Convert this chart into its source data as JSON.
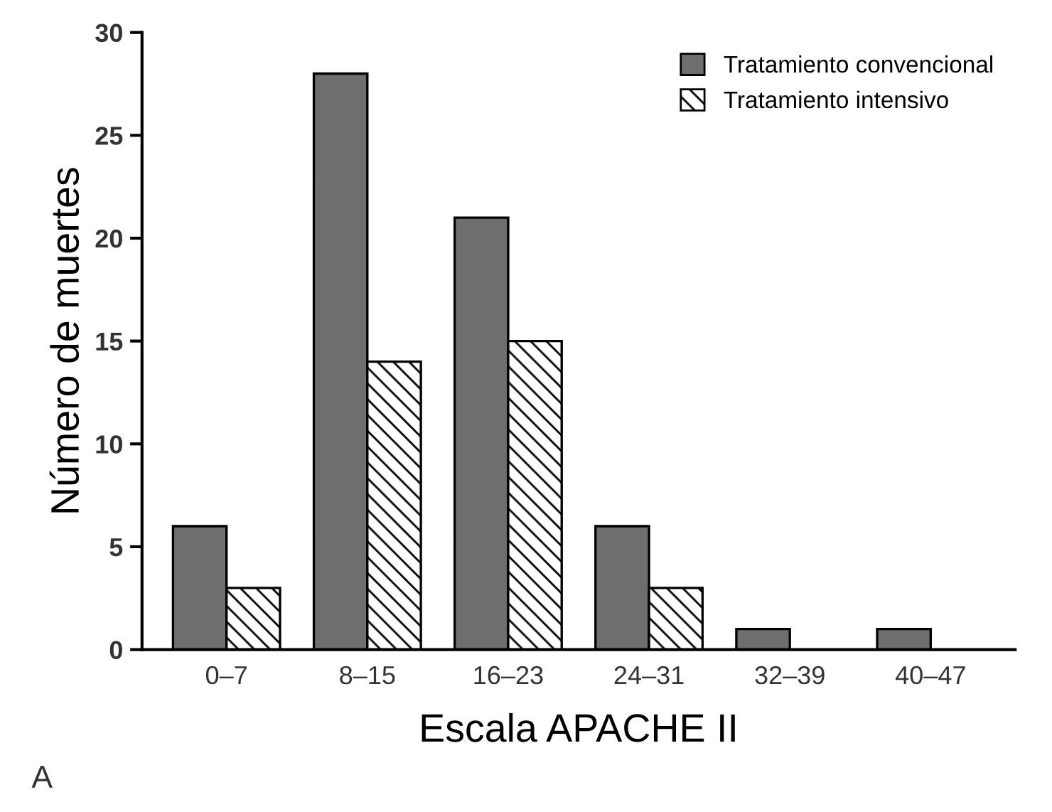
{
  "chart_data": {
    "type": "bar",
    "xlabel": "Escala APACHE II",
    "ylabel": "Número de muertes",
    "categories": [
      "0–7",
      "8–15",
      "16–23",
      "24–31",
      "32–39",
      "40–47"
    ],
    "series": [
      {
        "name": "Tratamiento convencional",
        "color": "#6e6e6e",
        "values": [
          6,
          28,
          21,
          6,
          1,
          1
        ]
      },
      {
        "name": "Tratamiento intensivo",
        "color": "#000000",
        "values": [
          3,
          14,
          15,
          3,
          0,
          0
        ]
      }
    ],
    "ylim": [
      0,
      30
    ],
    "yticks": [
      0,
      5,
      10,
      15,
      20,
      25,
      30
    ],
    "grid": false,
    "legend": "top right",
    "annotations": [
      "A"
    ]
  }
}
